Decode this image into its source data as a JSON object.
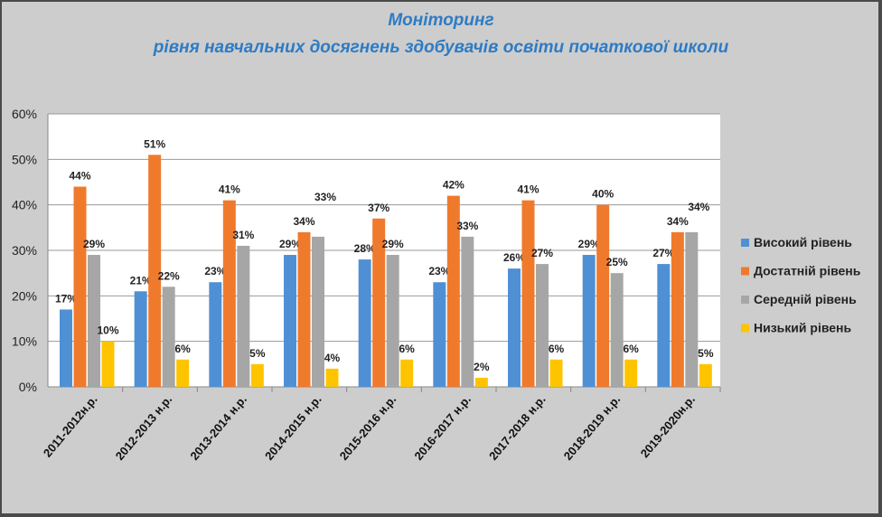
{
  "chart_data": {
    "type": "bar",
    "title": "Моніторинг",
    "subtitle": "рівня навчальних досягнень здобувачів освіти початкової школи",
    "xlabel": "",
    "ylabel": "",
    "ylim": [
      0,
      60
    ],
    "yticks": [
      "0%",
      "10%",
      "20%",
      "30%",
      "40%",
      "50%",
      "60%"
    ],
    "grid": true,
    "legend_position": "right",
    "categories": [
      "2011-2012н.р.",
      "2012-2013 н.р.",
      "2013-2014 н.р.",
      "2014-2015 н.р.",
      "2015-2016 н.р.",
      "2016-2017 н.р.",
      "2017-2018 н.р.",
      "2018-2019 н.р.",
      "2019-2020н.р."
    ],
    "series": [
      {
        "name": "Високий рівень",
        "color": "#4f90d4",
        "values": [
          17,
          21,
          23,
          29,
          28,
          23,
          26,
          29,
          27
        ]
      },
      {
        "name": "Достатній рівень",
        "color": "#f07a2c",
        "values": [
          44,
          51,
          41,
          34,
          37,
          42,
          41,
          40,
          34
        ]
      },
      {
        "name": "Середній рівень",
        "color": "#a6a6a6",
        "values": [
          29,
          22,
          31,
          33,
          29,
          33,
          27,
          25,
          34
        ]
      },
      {
        "name": "Низький рівень",
        "color": "#ffc400",
        "values": [
          10,
          6,
          5,
          4,
          6,
          2,
          6,
          6,
          5
        ]
      }
    ]
  }
}
